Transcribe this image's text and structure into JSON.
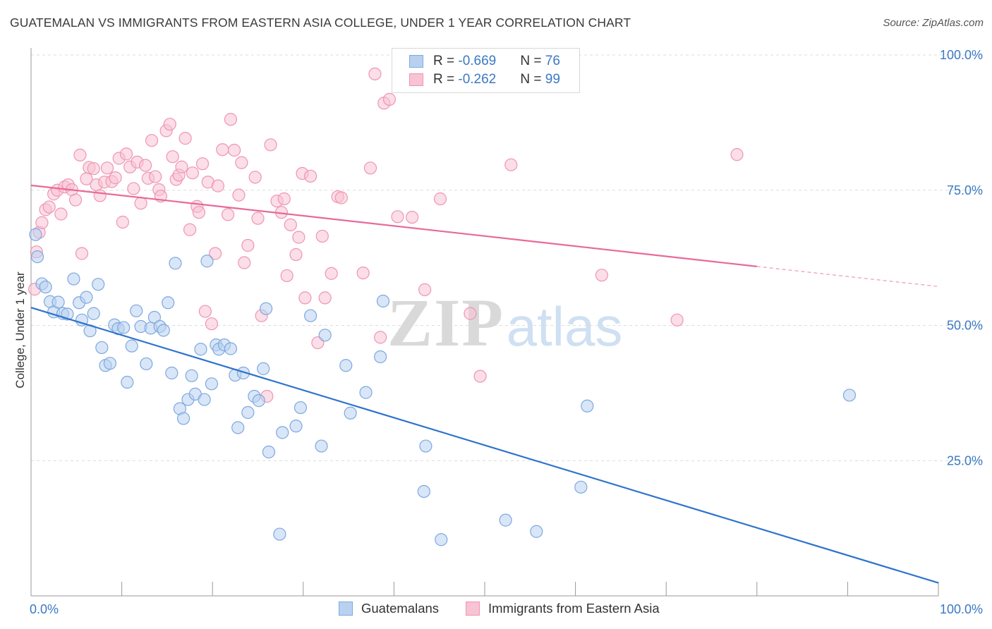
{
  "title": "GUATEMALAN VS IMMIGRANTS FROM EASTERN ASIA COLLEGE, UNDER 1 YEAR CORRELATION CHART",
  "source": "Source: ZipAtlas.com",
  "watermark": {
    "zip": "ZIP",
    "atlas": "atlas"
  },
  "legend": {
    "row1": {
      "r_label": "R = ",
      "r_value": "-0.669",
      "n_label": "N = ",
      "n_value": "76"
    },
    "row2": {
      "r_label": "R = ",
      "r_value": "-0.262",
      "n_label": "N = ",
      "n_value": "99"
    }
  },
  "bottom_legend": {
    "s1": "Guatemalans",
    "s2": "Immigrants from Eastern Asia"
  },
  "colors": {
    "blue_fill": "#b8d1f1",
    "blue_stroke": "#7ea8df",
    "blue_line": "#2f73cc",
    "pink_fill": "#f8c3d3",
    "pink_stroke": "#ef95b2",
    "pink_line": "#e8699a",
    "axis_text": "#3b78c3",
    "grid": "#dcdcdc"
  },
  "chart_data": {
    "type": "scatter",
    "xlabel": "",
    "ylabel": "College, Under 1 year",
    "xlim": [
      0,
      100
    ],
    "ylim": [
      0,
      100
    ],
    "x_tick_labels": [
      "0.0%",
      "100.0%"
    ],
    "y_ticks": [
      25,
      50,
      75,
      100
    ],
    "y_tick_labels": [
      "25.0%",
      "50.0%",
      "75.0%",
      "100.0%"
    ],
    "grid": true,
    "series": [
      {
        "name": "Guatemalans",
        "R": -0.669,
        "N": 76,
        "trend": {
          "x0": 0,
          "y0": 53.3,
          "x1": 100,
          "y1": 2.4
        },
        "points": [
          [
            0.5,
            66.8
          ],
          [
            0.7,
            62.7
          ],
          [
            1.2,
            57.7
          ],
          [
            1.6,
            57.1
          ],
          [
            2.1,
            54.4
          ],
          [
            2.5,
            52.5
          ],
          [
            3.0,
            54.3
          ],
          [
            3.5,
            52.2
          ],
          [
            4.0,
            52.1
          ],
          [
            4.7,
            58.6
          ],
          [
            5.3,
            54.2
          ],
          [
            5.6,
            51.0
          ],
          [
            6.1,
            55.2
          ],
          [
            6.5,
            49.0
          ],
          [
            6.9,
            52.2
          ],
          [
            7.4,
            57.6
          ],
          [
            7.8,
            45.9
          ],
          [
            8.2,
            42.6
          ],
          [
            8.7,
            43.0
          ],
          [
            9.2,
            50.1
          ],
          [
            9.6,
            49.4
          ],
          [
            10.2,
            49.6
          ],
          [
            10.6,
            39.5
          ],
          [
            11.1,
            46.2
          ],
          [
            11.6,
            52.7
          ],
          [
            12.1,
            49.8
          ],
          [
            12.7,
            42.9
          ],
          [
            13.2,
            49.5
          ],
          [
            13.6,
            51.5
          ],
          [
            14.2,
            49.8
          ],
          [
            14.6,
            49.1
          ],
          [
            15.1,
            54.2
          ],
          [
            15.5,
            41.2
          ],
          [
            15.9,
            61.5
          ],
          [
            16.4,
            34.6
          ],
          [
            16.8,
            32.8
          ],
          [
            17.3,
            36.3
          ],
          [
            17.7,
            40.7
          ],
          [
            18.1,
            37.3
          ],
          [
            18.7,
            45.6
          ],
          [
            19.1,
            36.3
          ],
          [
            19.4,
            61.9
          ],
          [
            19.9,
            39.2
          ],
          [
            20.4,
            46.4
          ],
          [
            20.7,
            45.6
          ],
          [
            21.3,
            46.4
          ],
          [
            22.0,
            45.7
          ],
          [
            22.5,
            40.8
          ],
          [
            22.8,
            31.1
          ],
          [
            23.4,
            41.2
          ],
          [
            23.9,
            33.9
          ],
          [
            24.6,
            36.9
          ],
          [
            25.1,
            36.1
          ],
          [
            25.6,
            42.0
          ],
          [
            25.9,
            53.1
          ],
          [
            26.2,
            26.6
          ],
          [
            27.4,
            11.4
          ],
          [
            27.7,
            30.2
          ],
          [
            29.2,
            31.4
          ],
          [
            29.7,
            34.8
          ],
          [
            30.8,
            51.8
          ],
          [
            32.0,
            27.7
          ],
          [
            32.4,
            48.2
          ],
          [
            34.7,
            42.6
          ],
          [
            35.2,
            33.8
          ],
          [
            36.9,
            37.6
          ],
          [
            38.5,
            44.2
          ],
          [
            38.8,
            54.5
          ],
          [
            43.3,
            19.3
          ],
          [
            43.5,
            27.7
          ],
          [
            45.2,
            10.4
          ],
          [
            52.3,
            14.0
          ],
          [
            55.7,
            11.9
          ],
          [
            60.6,
            20.1
          ],
          [
            61.3,
            35.1
          ],
          [
            90.2,
            37.1
          ]
        ]
      },
      {
        "name": "Immigrants from Eastern Asia",
        "R": -0.262,
        "N": 99,
        "trend": {
          "x0": 0,
          "y0": 75.9,
          "x1": 80,
          "y1": 60.9,
          "dash_to_x": 100,
          "dash_to_y": 57.2
        },
        "points": [
          [
            0.4,
            56.7
          ],
          [
            0.6,
            63.6
          ],
          [
            0.9,
            67.2
          ],
          [
            1.2,
            69.0
          ],
          [
            1.6,
            71.4
          ],
          [
            2.0,
            71.9
          ],
          [
            2.5,
            74.3
          ],
          [
            2.9,
            75.0
          ],
          [
            3.3,
            70.6
          ],
          [
            3.7,
            75.6
          ],
          [
            4.1,
            76.0
          ],
          [
            4.5,
            75.1
          ],
          [
            4.9,
            73.2
          ],
          [
            5.4,
            81.5
          ],
          [
            5.6,
            63.3
          ],
          [
            6.1,
            77.1
          ],
          [
            6.4,
            79.2
          ],
          [
            6.9,
            79.0
          ],
          [
            7.2,
            76.0
          ],
          [
            7.6,
            74.0
          ],
          [
            8.1,
            76.5
          ],
          [
            8.4,
            79.1
          ],
          [
            8.9,
            76.6
          ],
          [
            9.3,
            77.3
          ],
          [
            9.7,
            80.9
          ],
          [
            10.1,
            69.1
          ],
          [
            10.5,
            81.7
          ],
          [
            10.9,
            79.3
          ],
          [
            11.3,
            75.3
          ],
          [
            11.7,
            80.2
          ],
          [
            12.1,
            72.6
          ],
          [
            12.6,
            79.6
          ],
          [
            12.9,
            77.2
          ],
          [
            13.3,
            84.2
          ],
          [
            13.7,
            77.5
          ],
          [
            14.1,
            75.1
          ],
          [
            14.3,
            73.9
          ],
          [
            14.9,
            86.0
          ],
          [
            15.3,
            87.2
          ],
          [
            15.6,
            81.2
          ],
          [
            16.0,
            77.0
          ],
          [
            16.3,
            77.8
          ],
          [
            16.6,
            79.3
          ],
          [
            17.0,
            84.6
          ],
          [
            17.5,
            67.7
          ],
          [
            17.8,
            78.2
          ],
          [
            18.3,
            72.0
          ],
          [
            18.5,
            70.9
          ],
          [
            18.9,
            79.9
          ],
          [
            19.2,
            52.6
          ],
          [
            19.5,
            76.5
          ],
          [
            19.9,
            50.3
          ],
          [
            20.3,
            63.3
          ],
          [
            20.6,
            75.8
          ],
          [
            21.1,
            82.5
          ],
          [
            21.7,
            70.5
          ],
          [
            22.0,
            88.1
          ],
          [
            22.4,
            82.4
          ],
          [
            22.9,
            74.1
          ],
          [
            23.2,
            80.1
          ],
          [
            23.5,
            61.6
          ],
          [
            23.9,
            64.8
          ],
          [
            24.7,
            77.4
          ],
          [
            25.0,
            69.8
          ],
          [
            25.4,
            51.8
          ],
          [
            26.0,
            36.9
          ],
          [
            26.4,
            83.4
          ],
          [
            27.1,
            73.0
          ],
          [
            27.6,
            70.9
          ],
          [
            27.9,
            73.4
          ],
          [
            28.2,
            59.2
          ],
          [
            28.6,
            68.6
          ],
          [
            29.2,
            63.1
          ],
          [
            29.5,
            66.3
          ],
          [
            29.9,
            78.1
          ],
          [
            30.2,
            55.1
          ],
          [
            30.8,
            77.6
          ],
          [
            31.6,
            46.8
          ],
          [
            32.1,
            66.5
          ],
          [
            32.4,
            55.1
          ],
          [
            33.1,
            59.6
          ],
          [
            33.8,
            73.8
          ],
          [
            34.2,
            73.6
          ],
          [
            36.6,
            59.7
          ],
          [
            37.4,
            79.1
          ],
          [
            37.9,
            96.5
          ],
          [
            38.5,
            47.8
          ],
          [
            38.9,
            91.1
          ],
          [
            39.5,
            91.8
          ],
          [
            40.4,
            70.1
          ],
          [
            42.0,
            70.0
          ],
          [
            43.4,
            56.6
          ],
          [
            45.1,
            73.4
          ],
          [
            48.4,
            52.2
          ],
          [
            49.5,
            40.6
          ],
          [
            52.9,
            79.7
          ],
          [
            62.9,
            59.3
          ],
          [
            71.2,
            51.0
          ],
          [
            77.8,
            81.6
          ]
        ]
      }
    ]
  }
}
